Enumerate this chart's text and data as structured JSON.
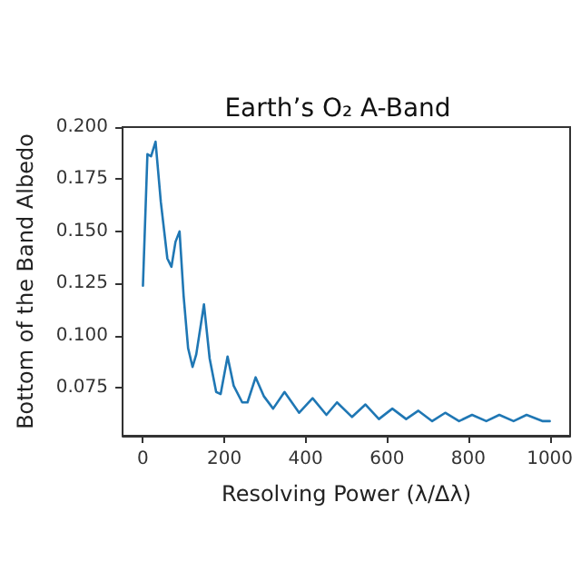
{
  "chart_data": {
    "type": "line",
    "title": "Earth’s O₂ A-Band",
    "xlabel": "Resolving Power (λ/Δλ)",
    "ylabel": "Bottom of the Band Albedo",
    "x": [
      0,
      11,
      20,
      31,
      44,
      60,
      70,
      80,
      90,
      100,
      111,
      122,
      131,
      150,
      164,
      180,
      191,
      208,
      223,
      244,
      257,
      277,
      297,
      320,
      348,
      384,
      417,
      451,
      477,
      514,
      547,
      580,
      613,
      647,
      677,
      711,
      743,
      777,
      809,
      844,
      876,
      911,
      943,
      983,
      1000
    ],
    "series": [
      {
        "color": "#1f77b4",
        "values": [
          0.124,
          0.187,
          0.186,
          0.193,
          0.164,
          0.137,
          0.133,
          0.145,
          0.15,
          0.119,
          0.094,
          0.085,
          0.091,
          0.115,
          0.089,
          0.073,
          0.072,
          0.09,
          0.076,
          0.068,
          0.068,
          0.08,
          0.071,
          0.065,
          0.073,
          0.063,
          0.07,
          0.062,
          0.068,
          0.061,
          0.067,
          0.06,
          0.065,
          0.06,
          0.064,
          0.059,
          0.063,
          0.059,
          0.062,
          0.059,
          0.062,
          0.059,
          0.062,
          0.059,
          0.059
        ]
      }
    ],
    "xlim": [
      -50,
      1050
    ],
    "xticks": [
      0,
      200,
      400,
      600,
      800,
      1000
    ],
    "ylim": [
      0.052,
      0.2
    ],
    "yticks": [
      {
        "value": 0.075,
        "label": "0.075"
      },
      {
        "value": 0.1,
        "label": "0.100"
      },
      {
        "value": 0.125,
        "label": "0.125"
      },
      {
        "value": 0.15,
        "label": "0.150"
      },
      {
        "value": 0.175,
        "label": "0.175"
      },
      {
        "value": 0.2,
        "label": "0.200"
      }
    ],
    "grid": false,
    "marker": "none",
    "line_style": "solid"
  }
}
